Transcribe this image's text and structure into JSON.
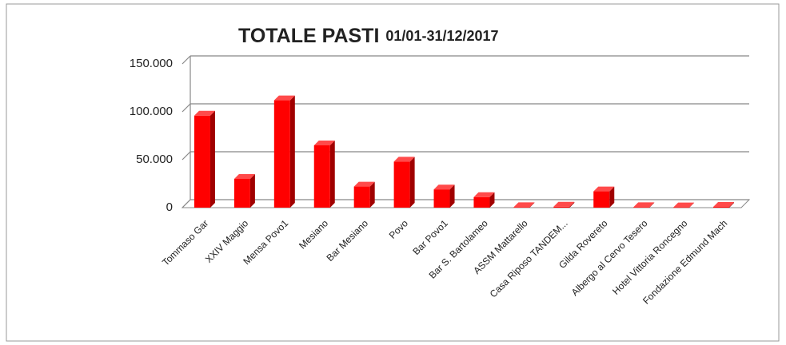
{
  "chart_data": {
    "type": "bar3d",
    "title": "TOTALE PASTI",
    "subtitle": "01/01-31/12/2017",
    "categories": [
      "Tommaso Gar",
      "XXIV Maggio",
      "Mensa Povo1",
      "Mesiano",
      "Bar Mesiano",
      "Povo",
      "Bar Povo1",
      "Bar S. Bartolameo",
      "ASSM Mattarello",
      "Casa Riposo TANDEM...",
      "Gilda Rovereto",
      "Albergo al Cervo Tesero",
      "Hotel Vittoria Roncegno",
      "Fondazione Edmund Mach"
    ],
    "values": [
      96000,
      30000,
      112000,
      65000,
      22000,
      48000,
      19000,
      11000,
      500,
      1000,
      17000,
      500,
      300,
      800
    ],
    "color": "#ff0000",
    "ylim": [
      0,
      150000
    ],
    "yticks": [
      0,
      {
        "value": 50000,
        "label": "50.000"
      },
      {
        "value": 100000,
        "label": "100.000"
      },
      {
        "value": 150000,
        "label": "150.000"
      }
    ],
    "grid": true
  }
}
